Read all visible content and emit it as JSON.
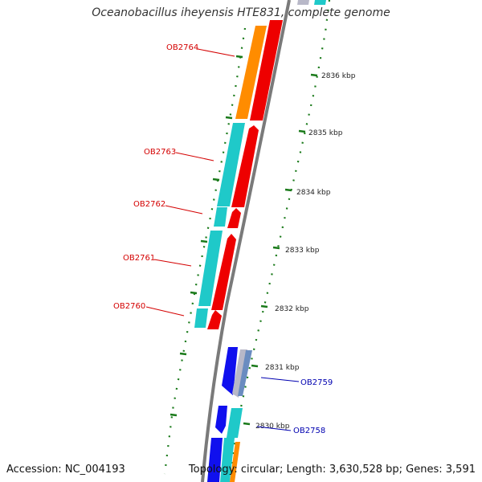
{
  "title": "Oceanobacillus iheyensis HTE831, complete genome",
  "footer": {
    "accession": "Accession: NC_004193",
    "topology": "Topology: circular; Length: 3,630,528 bp; Genes: 3,591"
  },
  "kbp_labels": [
    "2836 kbp",
    "2835 kbp",
    "2834 kbp",
    "2833 kbp",
    "2832 kbp",
    "2831 kbp",
    "2830 kbp"
  ],
  "genes_left": [
    "OB2764",
    "OB2763",
    "OB2762",
    "OB2761",
    "OB2760"
  ],
  "genes_right": [
    "OB2759",
    "OB2758"
  ],
  "colors": {
    "cds_teal": "#1fc9c9",
    "cds_red": "#ee0000",
    "cds_orange": "#ff8c00",
    "cds_blue": "#1010ee",
    "cds_gray": "#b8b8c8",
    "backbone": "#888888",
    "tick_green": "#1a7a1a",
    "label_red": "#d40000",
    "label_blue": "#0000b0"
  }
}
